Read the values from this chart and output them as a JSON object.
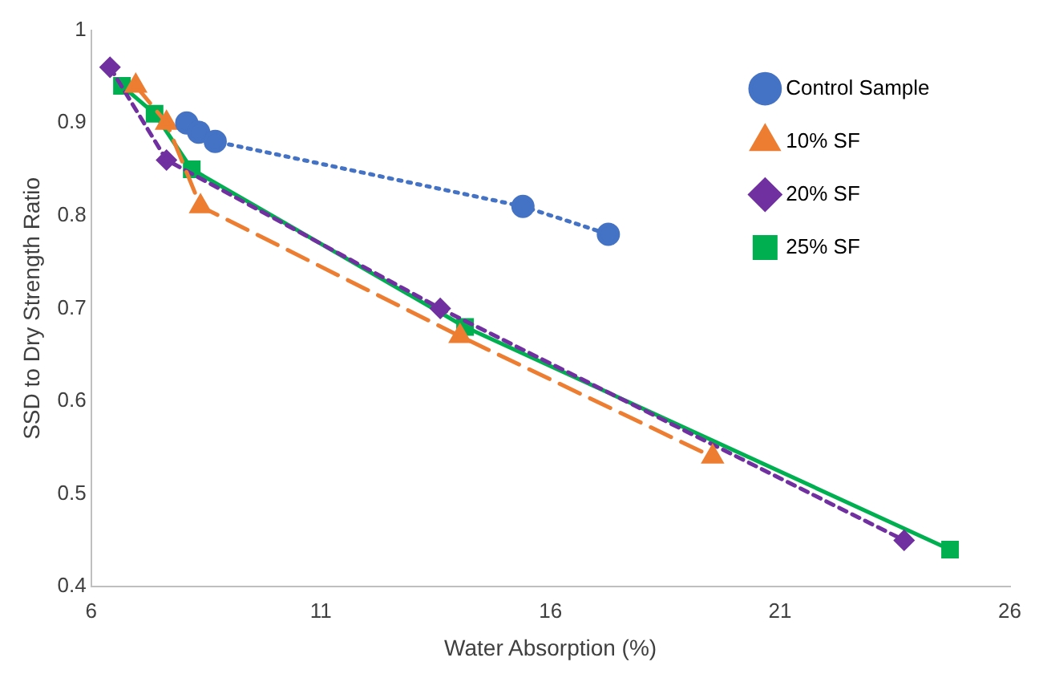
{
  "chart_data": {
    "type": "line",
    "xlabel": "Water Absorption (%)",
    "ylabel": "SSD to Dry Strength Ratio",
    "xlim": [
      6,
      26
    ],
    "xticks": [
      6,
      11,
      16,
      21,
      26
    ],
    "ylim": [
      0.4,
      1
    ],
    "yticks": [
      0.4,
      0.5,
      0.6,
      0.7,
      0.8,
      0.9,
      1
    ],
    "grid": false,
    "legend": "top right",
    "series": [
      {
        "name": "Control Sample",
        "color": "#4472c4",
        "marker": "circle",
        "line_style": "dotted",
        "x": [
          8.08,
          8.34,
          8.7,
          15.4,
          17.26
        ],
        "values": [
          0.9,
          0.89,
          0.88,
          0.81,
          0.78
        ]
      },
      {
        "name": "10% SF",
        "color": "#ed7d31",
        "marker": "triangle",
        "line_style": "dashed",
        "x": [
          6.97,
          7.64,
          8.38,
          14.03,
          19.53
        ],
        "values": [
          0.94,
          0.9,
          0.81,
          0.67,
          0.54
        ]
      },
      {
        "name": "20% SF",
        "color": "#7030a0",
        "marker": "diamond",
        "line_style": "dashed",
        "x": [
          6.41,
          7.64,
          13.6,
          23.7
        ],
        "values": [
          0.96,
          0.86,
          0.7,
          0.45
        ]
      },
      {
        "name": "25% SF",
        "color": "#00b050",
        "marker": "square",
        "line_style": "solid",
        "x": [
          6.67,
          7.38,
          8.19,
          14.14,
          24.7
        ],
        "values": [
          0.94,
          0.91,
          0.85,
          0.68,
          0.44
        ]
      }
    ]
  }
}
